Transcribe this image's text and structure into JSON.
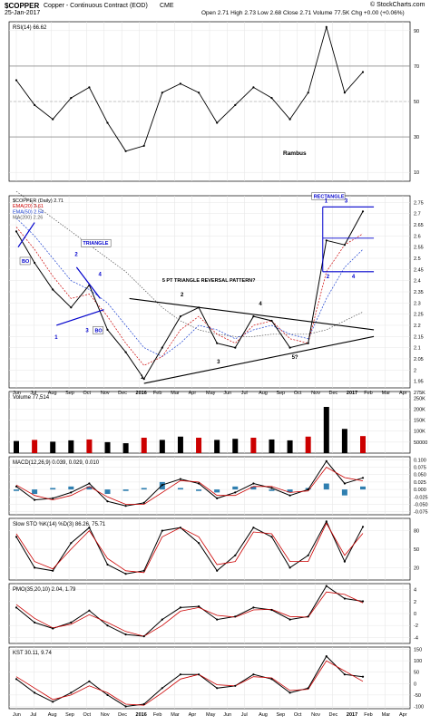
{
  "header": {
    "symbol": "$COPPER",
    "name": "Copper - Continuous Contract (EOD)",
    "exchange": "CME",
    "date": "25-Jan-2017",
    "quote": "Open 2.71  High 2.73  Low 2.68  Close 2.71  Volume 77.5K  Chg +0.00 (+0.06%)",
    "copyright": "© StockCharts.com"
  },
  "panels": {
    "rsi": {
      "label": "RSI(14) 66.62",
      "ticks": [
        90,
        70,
        50,
        30,
        10
      ],
      "annotation": "Rambus"
    },
    "price": {
      "legend": [
        "$COPPER (Daily) 2.71",
        "EMA(20) 2.61",
        "EMA(50) 2.54",
        "MA(200) 2.26"
      ],
      "ticks": [
        2.75,
        2.7,
        2.65,
        2.6,
        2.55,
        2.5,
        2.45,
        2.4,
        2.35,
        2.3,
        2.25,
        2.2,
        2.15,
        2.1,
        2.05,
        2.0,
        1.95
      ],
      "annotations": {
        "triangle_box": "TRIANGLE",
        "rectangle_box": "RECTANGLE",
        "pattern_title": "5 PT TRIANGLE REVERSAL PATTERN?",
        "bo1": "BO",
        "bo2": "BO",
        "t1": "1",
        "t2": "2",
        "t3": "3",
        "t4": "4",
        "p1": "1",
        "p2": "2",
        "p3": "3",
        "p4": "4",
        "p5": "5?",
        "r1": "1",
        "r2": "2",
        "r3": "3",
        "r4": "4"
      }
    },
    "volume": {
      "label": "Volume 77,514",
      "ticks": [
        "275K",
        "250K",
        "200K",
        "150K",
        "100K",
        "50000"
      ]
    },
    "macd": {
      "label": "MACD(12,26,9) 0.039, 0.029, 0.010",
      "ticks": [
        "0.100",
        "0.075",
        "0.050",
        "0.025",
        "0.000",
        "-0.025",
        "-0.050",
        "-0.075"
      ]
    },
    "sto": {
      "label": "Slow STO %K(14) %D(3) 86.26, 75.71",
      "ticks": [
        "80",
        "50",
        "20"
      ]
    },
    "pmo": {
      "label": "PMO(35,20,10) 2.04, 1.79",
      "ticks": [
        "4",
        "2",
        "0",
        "-2",
        "-4"
      ]
    },
    "kst": {
      "label": "KST 30.11, 9.74",
      "ticks": [
        "150",
        "100",
        "50",
        "0",
        "-50",
        "-100"
      ]
    }
  },
  "months": [
    "Jun",
    "Jul",
    "Aug",
    "Sep",
    "Oct",
    "Nov",
    "Dec",
    "2016",
    "Feb",
    "Mar",
    "Apr",
    "May",
    "Jun",
    "Jul",
    "Aug",
    "Sep",
    "Oct",
    "Nov",
    "Dec",
    "2017",
    "Feb",
    "Mar",
    "Apr"
  ],
  "colors": {
    "price": "#000000",
    "ema20": "#cc0000",
    "ema50": "#1a3fd0",
    "ma200": "#555555",
    "annotation": "#0000cc",
    "rsi_hot": "#5a8a4a",
    "rsi_cold": "#8a4a4a",
    "histogram": "#2f7fb0",
    "volume_up": "#000000",
    "volume_down": "#cc0000"
  },
  "chart_data": {
    "type": "line",
    "title": "$COPPER Copper - Continuous Contract (EOD) CME",
    "xlabel": "",
    "ylabel": "",
    "x": [
      "2015-06",
      "2015-07",
      "2015-08",
      "2015-09",
      "2015-10",
      "2015-11",
      "2015-12",
      "2016-01",
      "2016-02",
      "2016-03",
      "2016-04",
      "2016-05",
      "2016-06",
      "2016-07",
      "2016-08",
      "2016-09",
      "2016-10",
      "2016-11",
      "2016-12",
      "2017-01"
    ],
    "ylim": [
      1.92,
      2.78
    ],
    "series": [
      {
        "name": "$COPPER (Daily) 2.71",
        "values": [
          2.62,
          2.48,
          2.36,
          2.28,
          2.38,
          2.18,
          2.08,
          1.96,
          2.1,
          2.24,
          2.28,
          2.12,
          2.1,
          2.24,
          2.22,
          2.1,
          2.12,
          2.58,
          2.56,
          2.71
        ]
      },
      {
        "name": "EMA(20) 2.61",
        "values": [
          2.64,
          2.54,
          2.42,
          2.32,
          2.34,
          2.24,
          2.12,
          2.02,
          2.06,
          2.18,
          2.24,
          2.16,
          2.12,
          2.2,
          2.22,
          2.14,
          2.12,
          2.44,
          2.56,
          2.61
        ]
      },
      {
        "name": "EMA(50) 2.54",
        "values": [
          2.68,
          2.6,
          2.5,
          2.4,
          2.36,
          2.3,
          2.2,
          2.1,
          2.06,
          2.12,
          2.2,
          2.18,
          2.14,
          2.18,
          2.2,
          2.16,
          2.14,
          2.32,
          2.46,
          2.54
        ]
      },
      {
        "name": "MA(200) 2.26",
        "values": [
          2.8,
          2.74,
          2.68,
          2.62,
          2.56,
          2.5,
          2.44,
          2.36,
          2.28,
          2.22,
          2.18,
          2.16,
          2.15,
          2.15,
          2.16,
          2.16,
          2.16,
          2.18,
          2.22,
          2.26
        ]
      }
    ],
    "rsi": {
      "ylim": [
        5,
        95
      ],
      "values": [
        62,
        48,
        40,
        52,
        58,
        38,
        22,
        25,
        55,
        60,
        55,
        38,
        48,
        58,
        52,
        40,
        55,
        92,
        55,
        66.62
      ]
    },
    "volume": {
      "ylim": [
        0,
        280000
      ],
      "values": [
        55000,
        60000,
        52000,
        58000,
        62000,
        50000,
        45000,
        70000,
        60000,
        75000,
        70000,
        60000,
        65000,
        70000,
        62000,
        58000,
        75000,
        210000,
        110000,
        77514
      ]
    },
    "macd": {
      "ylim": [
        -0.085,
        0.11
      ],
      "macd": [
        0.01,
        -0.035,
        -0.03,
        -0.01,
        0.02,
        -0.04,
        -0.055,
        -0.045,
        0.015,
        0.035,
        0.02,
        -0.03,
        -0.01,
        0.02,
        0.005,
        -0.02,
        0.0,
        0.095,
        0.02,
        0.039
      ],
      "signal": [
        0.015,
        -0.02,
        -0.035,
        -0.02,
        0.01,
        -0.025,
        -0.05,
        -0.05,
        -0.01,
        0.03,
        0.025,
        -0.02,
        -0.02,
        0.01,
        0.01,
        -0.01,
        -0.005,
        0.075,
        0.04,
        0.029
      ]
    },
    "sto": {
      "ylim": [
        0,
        100
      ],
      "k": [
        70,
        20,
        15,
        60,
        85,
        25,
        10,
        15,
        80,
        85,
        60,
        15,
        40,
        85,
        70,
        20,
        40,
        95,
        30,
        86.26
      ],
      "d": [
        75,
        30,
        18,
        50,
        80,
        35,
        15,
        12,
        70,
        85,
        70,
        25,
        30,
        78,
        75,
        30,
        30,
        92,
        40,
        75.71
      ]
    },
    "pmo": {
      "ylim": [
        -5,
        5
      ],
      "pmo": [
        1.0,
        -1.5,
        -2.5,
        -1.5,
        0.5,
        -2.0,
        -3.5,
        -3.8,
        -1.0,
        1.0,
        1.2,
        -1.0,
        -0.5,
        1.0,
        0.6,
        -1.0,
        -0.5,
        4.6,
        2.5,
        2.04
      ],
      "signal": [
        1.5,
        -0.8,
        -2.4,
        -1.8,
        -0.2,
        -1.5,
        -3.0,
        -3.8,
        -2.0,
        0.4,
        1.0,
        -0.3,
        -0.6,
        0.6,
        0.7,
        -0.5,
        -0.6,
        3.6,
        3.2,
        1.79
      ]
    },
    "kst": {
      "ylim": [
        -110,
        160
      ],
      "kst": [
        20,
        -40,
        -80,
        -40,
        10,
        -50,
        -100,
        -90,
        -20,
        40,
        40,
        -20,
        -10,
        40,
        20,
        -40,
        -20,
        120,
        40,
        30.11
      ],
      "signal": [
        30,
        -20,
        -70,
        -50,
        -10,
        -40,
        -90,
        -95,
        -40,
        20,
        40,
        -5,
        -10,
        30,
        25,
        -30,
        -25,
        100,
        55,
        9.74
      ]
    }
  }
}
